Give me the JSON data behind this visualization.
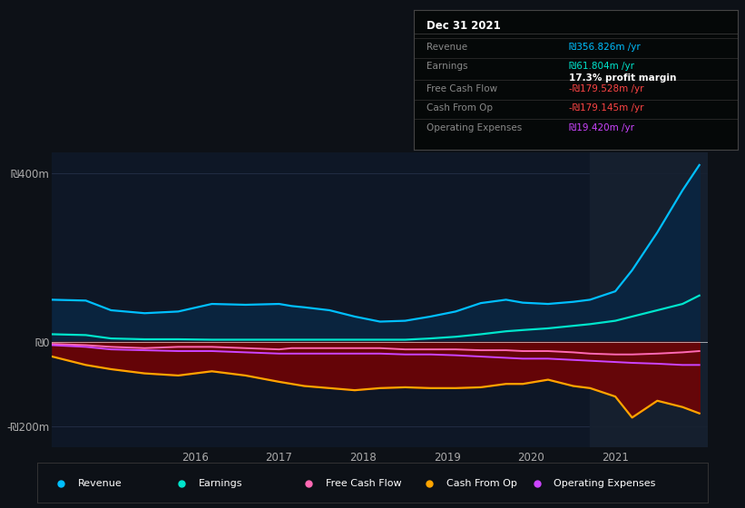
{
  "bg_color": "#0d1117",
  "plot_bg_color": "#0e1726",
  "ylim": [
    -250,
    450
  ],
  "yticks": [
    -200,
    0,
    400
  ],
  "ytick_labels": [
    "-₪200m",
    "₪0",
    "₪400m"
  ],
  "xlim_start": 2014.3,
  "xlim_end": 2022.1,
  "highlight_x_start": 2020.7,
  "years": [
    2014.3,
    2014.7,
    2015.0,
    2015.4,
    2015.8,
    2016.2,
    2016.6,
    2017.0,
    2017.15,
    2017.3,
    2017.6,
    2017.9,
    2018.2,
    2018.5,
    2018.8,
    2019.1,
    2019.4,
    2019.7,
    2019.9,
    2020.2,
    2020.5,
    2020.7,
    2021.0,
    2021.2,
    2021.5,
    2021.8,
    2022.0
  ],
  "revenue": [
    100,
    98,
    75,
    68,
    72,
    90,
    88,
    90,
    85,
    82,
    75,
    60,
    48,
    50,
    60,
    72,
    92,
    100,
    93,
    90,
    95,
    100,
    120,
    170,
    260,
    360,
    420
  ],
  "earnings": [
    18,
    16,
    8,
    6,
    6,
    5,
    5,
    5,
    5,
    5,
    5,
    5,
    5,
    5,
    8,
    12,
    18,
    25,
    28,
    32,
    38,
    42,
    50,
    60,
    75,
    90,
    110
  ],
  "free_cash_flow": [
    -5,
    -8,
    -12,
    -15,
    -12,
    -12,
    -15,
    -18,
    -15,
    -15,
    -15,
    -15,
    -15,
    -18,
    -18,
    -18,
    -20,
    -20,
    -22,
    -22,
    -25,
    -28,
    -30,
    -30,
    -28,
    -25,
    -22
  ],
  "cash_from_op": [
    -35,
    -55,
    -65,
    -75,
    -80,
    -70,
    -80,
    -95,
    -100,
    -105,
    -110,
    -115,
    -110,
    -108,
    -110,
    -110,
    -108,
    -100,
    -100,
    -90,
    -105,
    -110,
    -130,
    -180,
    -140,
    -155,
    -170
  ],
  "operating_expenses": [
    -8,
    -12,
    -18,
    -20,
    -22,
    -22,
    -25,
    -28,
    -28,
    -28,
    -28,
    -28,
    -28,
    -30,
    -30,
    -32,
    -35,
    -38,
    -40,
    -40,
    -43,
    -45,
    -48,
    -50,
    -52,
    -55,
    -55
  ],
  "revenue_color": "#00bfff",
  "earnings_color": "#00e5cc",
  "free_cash_flow_color": "#ff69b4",
  "cash_from_op_color": "#ffa500",
  "operating_expenses_color": "#cc44ff",
  "revenue_fill_alpha": 0.85,
  "cash_fill_alpha": 0.7,
  "legend": [
    {
      "label": "Revenue",
      "color": "#00bfff"
    },
    {
      "label": "Earnings",
      "color": "#00e5cc"
    },
    {
      "label": "Free Cash Flow",
      "color": "#ff69b4"
    },
    {
      "label": "Cash From Op",
      "color": "#ffa500"
    },
    {
      "label": "Operating Expenses",
      "color": "#cc44ff"
    }
  ],
  "xtick_positions": [
    2016,
    2017,
    2018,
    2019,
    2020,
    2021
  ],
  "tooltip_title": "Dec 31 2021",
  "tooltip_rows": [
    {
      "label": "Revenue",
      "value": "₪356.826m /yr",
      "value_color": "#00bfff",
      "sep_before": true
    },
    {
      "label": "Earnings",
      "value": "₪61.804m /yr",
      "value_color": "#00e5cc",
      "sep_before": true
    },
    {
      "label": "",
      "value": "17.3% profit margin",
      "value_color": "#ffffff",
      "sep_before": false,
      "bold_val": true
    },
    {
      "label": "Free Cash Flow",
      "value": "-₪179.528m /yr",
      "value_color": "#ff4444",
      "sep_before": true
    },
    {
      "label": "Cash From Op",
      "value": "-₪179.145m /yr",
      "value_color": "#ff4444",
      "sep_before": true
    },
    {
      "label": "Operating Expenses",
      "value": "₪19.420m /yr",
      "value_color": "#cc44ff",
      "sep_before": true
    }
  ]
}
